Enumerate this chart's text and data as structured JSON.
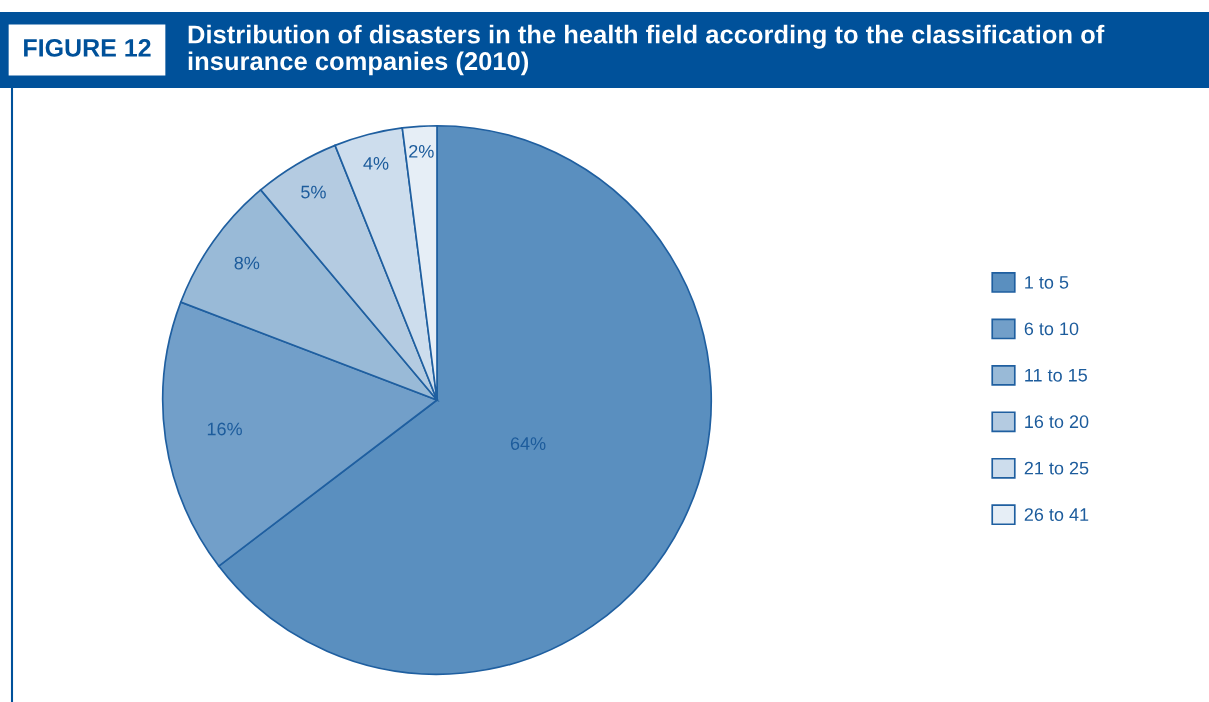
{
  "chart_data": {
    "type": "pie",
    "title": "Distribution of disasters in the health field according to the classification of insurance companies (2010)",
    "annotations": [
      "FIGURE 12"
    ],
    "categories": [
      "1 to 5",
      "6 to 10",
      "11 to 15",
      "16 to 20",
      "21 to 25",
      "26 to 41"
    ],
    "values": [
      64,
      16,
      8,
      5,
      4,
      2
    ],
    "value_labels": [
      "64%",
      "16%",
      "8%",
      "5%",
      "4%",
      "2%"
    ],
    "colors": [
      "#5a8fbf",
      "#729fc9",
      "#99bad7",
      "#b4cbe1",
      "#cddded",
      "#e6eef6"
    ],
    "legend": "right"
  }
}
